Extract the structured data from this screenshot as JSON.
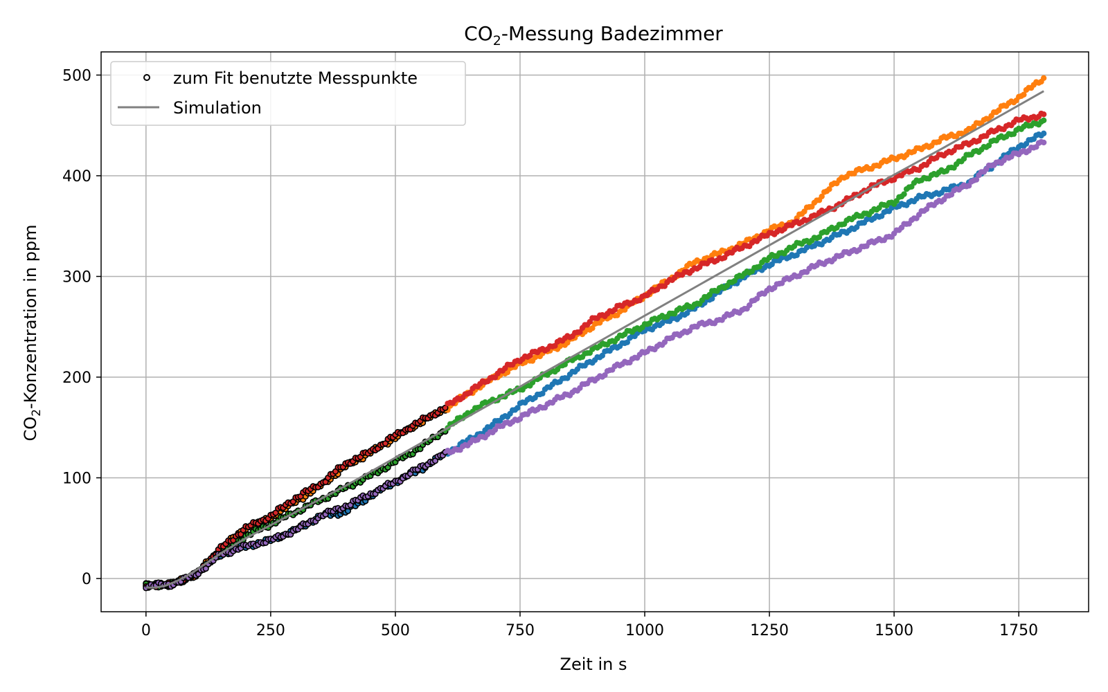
{
  "chart_data": {
    "type": "scatter",
    "title": {
      "prefix": "CO",
      "sub": "2",
      "suffix": "-Messung Badezimmer"
    },
    "xlabel": "Zeit in s",
    "ylabel": {
      "prefix": "CO",
      "sub": "2",
      "suffix": "-Konzentration in ppm"
    },
    "xlim": [
      -90,
      1890
    ],
    "ylim": [
      -33,
      523
    ],
    "xticks": [
      0,
      250,
      500,
      750,
      1000,
      1250,
      1500,
      1750
    ],
    "yticks": [
      0,
      100,
      200,
      300,
      400,
      500
    ],
    "grid": true,
    "legend_position": "top-left",
    "legend": [
      {
        "label": "zum Fit benutzte Messpunkte",
        "marker": "open-circle",
        "color": "#000000"
      },
      {
        "label": "Simulation",
        "marker": "line",
        "color": "#808080"
      }
    ],
    "fit_range_max_x": 600,
    "series": [
      {
        "color": "#1f77b4",
        "points": [
          [
            0,
            -7
          ],
          [
            50,
            -6
          ],
          [
            100,
            4
          ],
          [
            150,
            24
          ],
          [
            200,
            32
          ],
          [
            250,
            38
          ],
          [
            300,
            48
          ],
          [
            350,
            62
          ],
          [
            400,
            66
          ],
          [
            450,
            82
          ],
          [
            500,
            96
          ],
          [
            550,
            108
          ],
          [
            600,
            124
          ],
          [
            650,
            138
          ],
          [
            700,
            154
          ],
          [
            750,
            172
          ],
          [
            800,
            187
          ],
          [
            850,
            203
          ],
          [
            900,
            218
          ],
          [
            950,
            232
          ],
          [
            1000,
            247
          ],
          [
            1050,
            256
          ],
          [
            1100,
            268
          ],
          [
            1150,
            285
          ],
          [
            1200,
            300
          ],
          [
            1250,
            312
          ],
          [
            1300,
            322
          ],
          [
            1350,
            333
          ],
          [
            1400,
            344
          ],
          [
            1450,
            356
          ],
          [
            1500,
            368
          ],
          [
            1550,
            378
          ],
          [
            1600,
            385
          ],
          [
            1650,
            393
          ],
          [
            1700,
            411
          ],
          [
            1750,
            429
          ],
          [
            1800,
            442
          ]
        ]
      },
      {
        "color": "#ff7f0e",
        "points": [
          [
            0,
            -7
          ],
          [
            50,
            -6
          ],
          [
            100,
            4
          ],
          [
            150,
            30
          ],
          [
            200,
            50
          ],
          [
            250,
            60
          ],
          [
            300,
            76
          ],
          [
            350,
            92
          ],
          [
            400,
            111
          ],
          [
            450,
            125
          ],
          [
            500,
            140
          ],
          [
            550,
            155
          ],
          [
            600,
            168
          ],
          [
            650,
            185
          ],
          [
            700,
            200
          ],
          [
            750,
            213
          ],
          [
            800,
            224
          ],
          [
            850,
            236
          ],
          [
            900,
            252
          ],
          [
            950,
            265
          ],
          [
            1000,
            281
          ],
          [
            1050,
            297
          ],
          [
            1100,
            314
          ],
          [
            1150,
            323
          ],
          [
            1200,
            333
          ],
          [
            1250,
            346
          ],
          [
            1300,
            355
          ],
          [
            1350,
            378
          ],
          [
            1400,
            400
          ],
          [
            1450,
            408
          ],
          [
            1500,
            417
          ],
          [
            1550,
            426
          ],
          [
            1600,
            437
          ],
          [
            1650,
            445
          ],
          [
            1700,
            462
          ],
          [
            1750,
            478
          ],
          [
            1800,
            497
          ]
        ]
      },
      {
        "color": "#2ca02c",
        "points": [
          [
            0,
            -7
          ],
          [
            50,
            -6
          ],
          [
            100,
            4
          ],
          [
            150,
            28
          ],
          [
            200,
            42
          ],
          [
            250,
            54
          ],
          [
            300,
            66
          ],
          [
            350,
            78
          ],
          [
            400,
            90
          ],
          [
            450,
            102
          ],
          [
            500,
            116
          ],
          [
            550,
            130
          ],
          [
            600,
            148
          ],
          [
            650,
            166
          ],
          [
            700,
            178
          ],
          [
            750,
            188
          ],
          [
            800,
            202
          ],
          [
            850,
            216
          ],
          [
            900,
            228
          ],
          [
            950,
            240
          ],
          [
            1000,
            252
          ],
          [
            1050,
            263
          ],
          [
            1100,
            272
          ],
          [
            1150,
            288
          ],
          [
            1200,
            302
          ],
          [
            1250,
            318
          ],
          [
            1300,
            330
          ],
          [
            1350,
            340
          ],
          [
            1400,
            354
          ],
          [
            1450,
            364
          ],
          [
            1500,
            374
          ],
          [
            1550,
            396
          ],
          [
            1600,
            404
          ],
          [
            1650,
            420
          ],
          [
            1700,
            434
          ],
          [
            1750,
            446
          ],
          [
            1800,
            455
          ]
        ]
      },
      {
        "color": "#d62728",
        "points": [
          [
            0,
            -7
          ],
          [
            50,
            -6
          ],
          [
            100,
            4
          ],
          [
            150,
            30
          ],
          [
            200,
            50
          ],
          [
            250,
            62
          ],
          [
            300,
            80
          ],
          [
            350,
            94
          ],
          [
            400,
            114
          ],
          [
            450,
            126
          ],
          [
            500,
            142
          ],
          [
            550,
            156
          ],
          [
            600,
            170
          ],
          [
            650,
            186
          ],
          [
            700,
            202
          ],
          [
            750,
            218
          ],
          [
            800,
            228
          ],
          [
            850,
            240
          ],
          [
            900,
            258
          ],
          [
            950,
            270
          ],
          [
            1000,
            280
          ],
          [
            1050,
            296
          ],
          [
            1100,
            308
          ],
          [
            1150,
            318
          ],
          [
            1200,
            330
          ],
          [
            1250,
            342
          ],
          [
            1300,
            352
          ],
          [
            1350,
            362
          ],
          [
            1400,
            374
          ],
          [
            1450,
            388
          ],
          [
            1500,
            398
          ],
          [
            1550,
            408
          ],
          [
            1600,
            422
          ],
          [
            1650,
            432
          ],
          [
            1700,
            444
          ],
          [
            1750,
            455
          ],
          [
            1800,
            461
          ]
        ]
      },
      {
        "color": "#9467bd",
        "points": [
          [
            0,
            -7
          ],
          [
            50,
            -6
          ],
          [
            100,
            4
          ],
          [
            150,
            24
          ],
          [
            200,
            32
          ],
          [
            250,
            38
          ],
          [
            300,
            48
          ],
          [
            350,
            62
          ],
          [
            400,
            72
          ],
          [
            450,
            84
          ],
          [
            500,
            96
          ],
          [
            550,
            110
          ],
          [
            600,
            124
          ],
          [
            650,
            134
          ],
          [
            700,
            148
          ],
          [
            750,
            160
          ],
          [
            800,
            172
          ],
          [
            850,
            184
          ],
          [
            900,
            198
          ],
          [
            950,
            212
          ],
          [
            1000,
            224
          ],
          [
            1050,
            238
          ],
          [
            1100,
            250
          ],
          [
            1150,
            257
          ],
          [
            1200,
            268
          ],
          [
            1250,
            288
          ],
          [
            1300,
            300
          ],
          [
            1350,
            312
          ],
          [
            1400,
            322
          ],
          [
            1450,
            332
          ],
          [
            1500,
            342
          ],
          [
            1550,
            362
          ],
          [
            1600,
            378
          ],
          [
            1650,
            392
          ],
          [
            1700,
            412
          ],
          [
            1750,
            422
          ],
          [
            1800,
            433
          ]
        ]
      }
    ],
    "simulation": {
      "color": "#808080",
      "points": [
        [
          0,
          -9
        ],
        [
          20,
          -9
        ],
        [
          40,
          -7
        ],
        [
          60,
          -3
        ],
        [
          80,
          2
        ],
        [
          100,
          8
        ],
        [
          150,
          25
        ],
        [
          200,
          40
        ],
        [
          300,
          66
        ],
        [
          400,
          92
        ],
        [
          500,
          120
        ],
        [
          600,
          148
        ],
        [
          700,
          176
        ],
        [
          800,
          205
        ],
        [
          900,
          233
        ],
        [
          1000,
          261
        ],
        [
          1100,
          289
        ],
        [
          1200,
          317
        ],
        [
          1300,
          345
        ],
        [
          1400,
          373
        ],
        [
          1500,
          401
        ],
        [
          1600,
          428
        ],
        [
          1700,
          456
        ],
        [
          1800,
          484
        ]
      ]
    }
  }
}
